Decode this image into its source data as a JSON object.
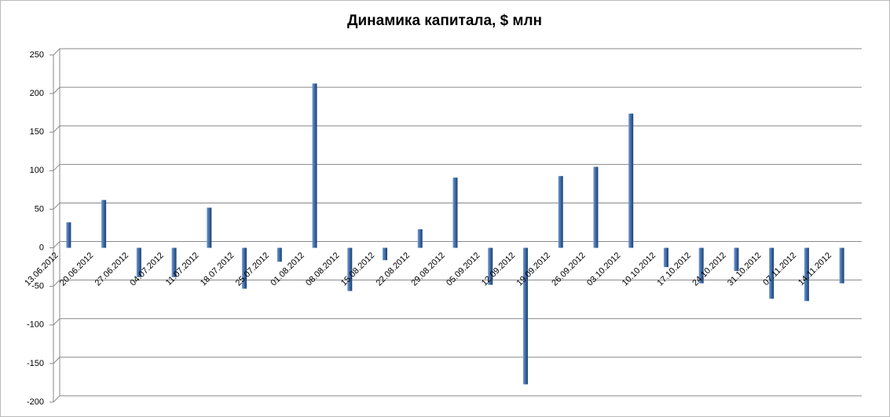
{
  "chart_data": {
    "type": "bar",
    "title": "Динамика капитала, $ млн",
    "categories": [
      "13.06.2012",
      "20.06.2012",
      "27.06.2012",
      "04.07.2012",
      "11.07.2012",
      "18.07.2012",
      "25.07.2012",
      "01.08.2012",
      "08.08.2012",
      "15.08.2012",
      "22.08.2012",
      "29.08.2012",
      "05.09.2012",
      "12.09.2012",
      "19.09.2012",
      "26.09.2012",
      "03.10.2012",
      "10.10.2012",
      "17.10.2012",
      "24.10.2012",
      "31.10.2012",
      "07.11.2012",
      "14.11.2012"
    ],
    "values": [
      33,
      62,
      -38,
      -38,
      52,
      -53,
      -18,
      213,
      -56,
      -16,
      24,
      91,
      -48,
      -177,
      93,
      105,
      174,
      -25,
      -46,
      -30,
      -66,
      -69,
      -46
    ],
    "color": "#3d6aa6",
    "ylim": [
      -200,
      250
    ],
    "yticks": [
      -200,
      -150,
      -100,
      -50,
      0,
      50,
      100,
      150,
      200,
      250
    ],
    "grid": true
  }
}
